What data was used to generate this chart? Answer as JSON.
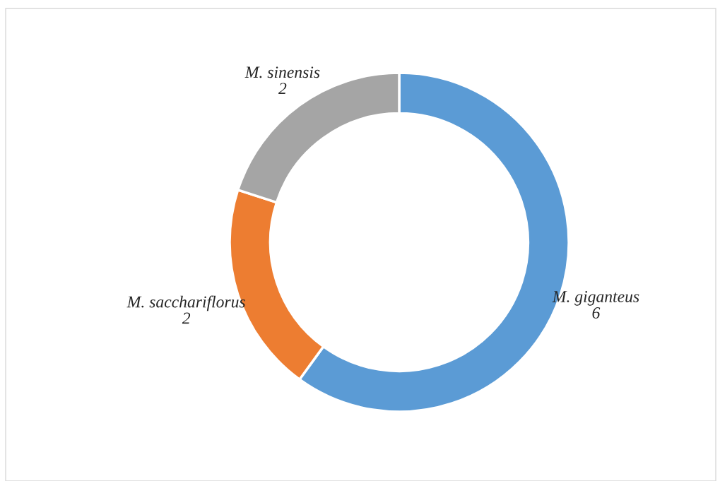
{
  "chart_data": {
    "type": "donut",
    "categories": [
      "M. giganteus",
      "M. sacchariflorus",
      "M. sinensis"
    ],
    "values": [
      6,
      2,
      2
    ],
    "colors": [
      "#5b9bd5",
      "#ed7d31",
      "#a5a5a5"
    ],
    "data_labels": true,
    "legend": false
  }
}
